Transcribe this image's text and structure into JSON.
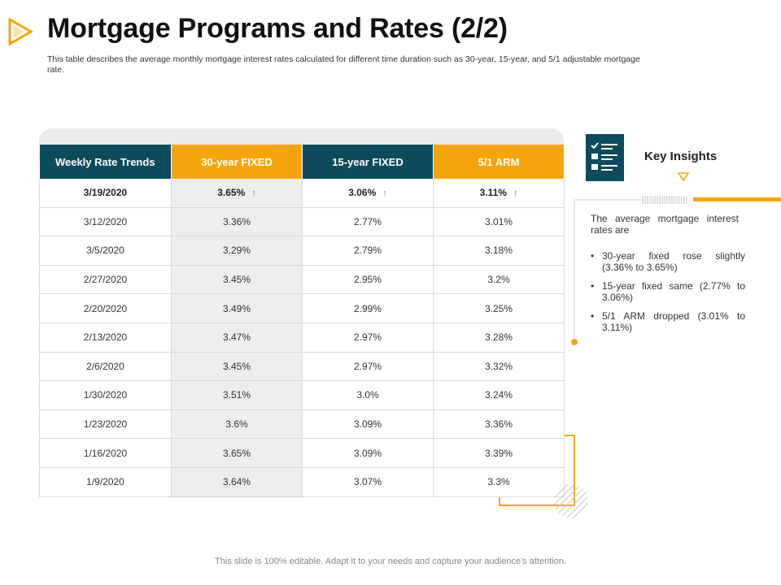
{
  "slide": {
    "title": "Mortgage Programs and Rates (2/2)",
    "subtitle": "This table describes the average monthly mortgage interest rates calculated for different time duration such as 30-year, 15-year, and 5/1 adjustable mortgage rate.",
    "footer": "This slide is 100% editable. Adapt it to your needs and capture your audience's attention."
  },
  "table": {
    "headers": [
      "Weekly Rate Trends",
      "30-year FIXED",
      "15-year FIXED",
      "5/1 ARM"
    ],
    "header_colors": [
      "#0c4b5c",
      "#f5a50b",
      "#0c4b5c",
      "#f5a50b"
    ],
    "rows": [
      {
        "date": "3/19/2020",
        "fixed30": "3.65%",
        "fixed15": "3.06%",
        "arm51": "3.11%"
      },
      {
        "date": "3/12/2020",
        "fixed30": "3.36%",
        "fixed15": "2.77%",
        "arm51": "3.01%"
      },
      {
        "date": "3/5/2020",
        "fixed30": "3.29%",
        "fixed15": "2.79%",
        "arm51": "3.18%"
      },
      {
        "date": "2/27/2020",
        "fixed30": "3.45%",
        "fixed15": "2.95%",
        "arm51": "3.2%"
      },
      {
        "date": "2/20/2020",
        "fixed30": "3.49%",
        "fixed15": "2.99%",
        "arm51": "3.25%"
      },
      {
        "date": "2/13/2020",
        "fixed30": "3.47%",
        "fixed15": "2.97%",
        "arm51": "3.28%"
      },
      {
        "date": "2/6/2020",
        "fixed30": "3.45%",
        "fixed15": "2.97%",
        "arm51": "3.32%"
      },
      {
        "date": "1/30/2020",
        "fixed30": "3.51%",
        "fixed15": "3.0%",
        "arm51": "3.24%"
      },
      {
        "date": "1/23/2020",
        "fixed30": "3.6%",
        "fixed15": "3.09%",
        "arm51": "3.36%"
      },
      {
        "date": "1/16/2020",
        "fixed30": "3.65%",
        "fixed15": "3.09%",
        "arm51": "3.39%"
      },
      {
        "date": "1/9/2020",
        "fixed30": "3.64%",
        "fixed15": "3.07%",
        "arm51": "3.3%"
      }
    ],
    "trend_icon": "up-arrow-icon",
    "trend_color": "#2e9e4a"
  },
  "insights": {
    "title": "Key Insights",
    "icon": "checklist-icon",
    "intro": "The average mortgage interest rates are",
    "bullets": [
      "30-year fixed rose slightly (3.36% to 3.65%)",
      "15-year fixed same (2.77% to 3.06%)",
      "5/1 ARM dropped (3.01% to 3.11%)"
    ]
  },
  "colors": {
    "teal": "#0c4b5c",
    "orange": "#f5a50b",
    "gray_band": "#e9e9e9"
  }
}
